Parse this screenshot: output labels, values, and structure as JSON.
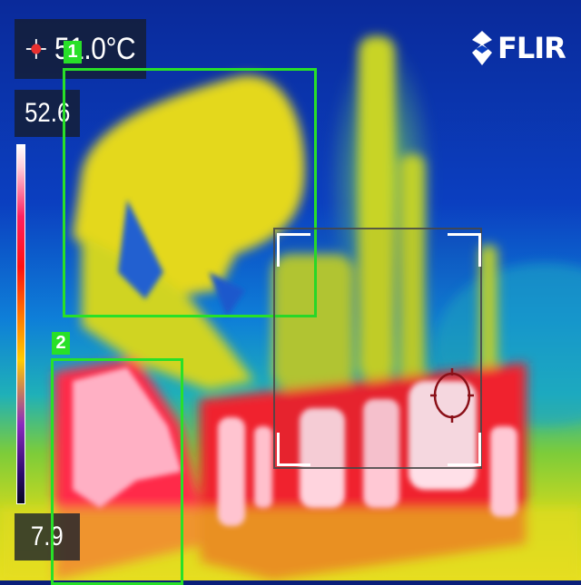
{
  "spot": {
    "value": "51.0°C",
    "icon": "crosshair-icon"
  },
  "scale": {
    "max": "52.6",
    "min": "7.9",
    "palette": "iron-rainbow"
  },
  "brand": {
    "name": "FLIR",
    "icon": "flir-logo-icon"
  },
  "measurement_boxes": [
    {
      "id": "1",
      "label": "1",
      "color": "#28e028"
    },
    {
      "id": "2",
      "label": "2",
      "color": "#28e028"
    }
  ],
  "colors": {
    "accent": "#28e028",
    "panel": "#141c2c",
    "reticle": "#ffffff"
  }
}
